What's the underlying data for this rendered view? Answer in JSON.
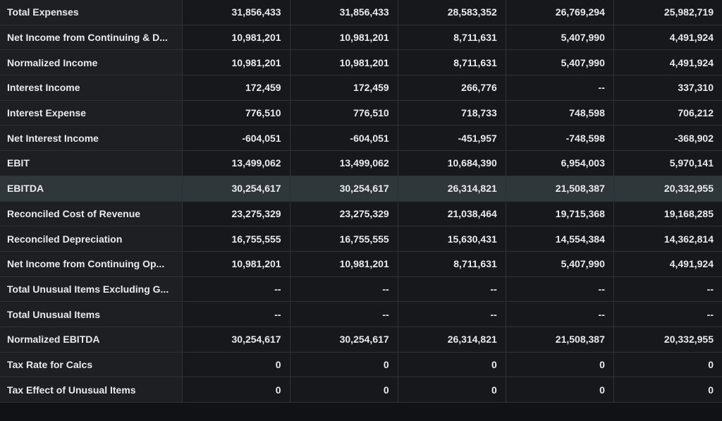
{
  "table": {
    "rows": [
      {
        "label": "Total Expenses",
        "values": [
          "31,856,433",
          "31,856,433",
          "28,583,352",
          "26,769,294",
          "25,982,719"
        ]
      },
      {
        "label": "Net Income from Continuing & D...",
        "values": [
          "10,981,201",
          "10,981,201",
          "8,711,631",
          "5,407,990",
          "4,491,924"
        ]
      },
      {
        "label": "Normalized Income",
        "values": [
          "10,981,201",
          "10,981,201",
          "8,711,631",
          "5,407,990",
          "4,491,924"
        ]
      },
      {
        "label": "Interest Income",
        "values": [
          "172,459",
          "172,459",
          "266,776",
          "--",
          "337,310"
        ]
      },
      {
        "label": "Interest Expense",
        "values": [
          "776,510",
          "776,510",
          "718,733",
          "748,598",
          "706,212"
        ]
      },
      {
        "label": "Net Interest Income",
        "values": [
          "-604,051",
          "-604,051",
          "-451,957",
          "-748,598",
          "-368,902"
        ]
      },
      {
        "label": "EBIT",
        "values": [
          "13,499,062",
          "13,499,062",
          "10,684,390",
          "6,954,003",
          "5,970,141"
        ]
      },
      {
        "label": "EBITDA",
        "values": [
          "30,254,617",
          "30,254,617",
          "26,314,821",
          "21,508,387",
          "20,332,955"
        ],
        "highlighted": true
      },
      {
        "label": "Reconciled Cost of Revenue",
        "values": [
          "23,275,329",
          "23,275,329",
          "21,038,464",
          "19,715,368",
          "19,168,285"
        ]
      },
      {
        "label": "Reconciled Depreciation",
        "values": [
          "16,755,555",
          "16,755,555",
          "15,630,431",
          "14,554,384",
          "14,362,814"
        ]
      },
      {
        "label": "Net Income from Continuing Op...",
        "values": [
          "10,981,201",
          "10,981,201",
          "8,711,631",
          "5,407,990",
          "4,491,924"
        ]
      },
      {
        "label": "Total Unusual Items Excluding G...",
        "values": [
          "--",
          "--",
          "--",
          "--",
          "--"
        ]
      },
      {
        "label": "Total Unusual Items",
        "values": [
          "--",
          "--",
          "--",
          "--",
          "--"
        ]
      },
      {
        "label": "Normalized EBITDA",
        "values": [
          "30,254,617",
          "30,254,617",
          "26,314,821",
          "21,508,387",
          "20,332,955"
        ]
      },
      {
        "label": "Tax Rate for Calcs",
        "values": [
          "0",
          "0",
          "0",
          "0",
          "0"
        ]
      },
      {
        "label": "Tax Effect of Unusual Items",
        "values": [
          "0",
          "0",
          "0",
          "0",
          "0"
        ]
      }
    ]
  }
}
